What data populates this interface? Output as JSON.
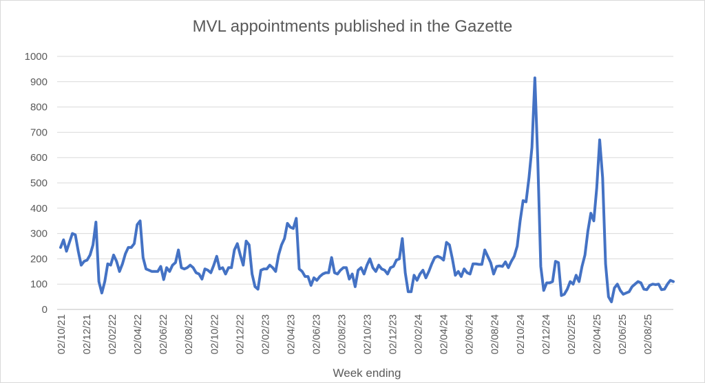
{
  "chart_data": {
    "type": "line",
    "title": "MVL appointments published in the Gazette",
    "xlabel": "Week ending",
    "ylabel": "",
    "ylim": [
      0,
      1000
    ],
    "yticks": [
      0,
      100,
      200,
      300,
      400,
      500,
      600,
      700,
      800,
      900,
      1000
    ],
    "x_tick_labels": [
      "02/10/21",
      "02/12/21",
      "02/02/22",
      "02/04/22",
      "02/06/22",
      "02/08/22",
      "02/10/22",
      "02/12/22",
      "02/02/23",
      "02/04/23",
      "02/06/23",
      "02/08/23",
      "02/10/23",
      "02/12/23",
      "02/02/24",
      "02/04/24",
      "02/06/24",
      "02/08/24",
      "02/10/24",
      "02/12/24",
      "02/02/25",
      "02/04/25",
      "02/06/25",
      "02/08/25"
    ],
    "grid": true,
    "legend": "none",
    "color": "#4472c4",
    "series": [
      {
        "values": [
          245,
          275,
          230,
          265,
          300,
          295,
          230,
          175,
          190,
          195,
          215,
          255,
          345,
          110,
          65,
          110,
          180,
          175,
          215,
          190,
          150,
          180,
          220,
          245,
          245,
          260,
          335,
          350,
          205,
          160,
          155,
          150,
          150,
          150,
          170,
          118,
          165,
          150,
          175,
          185,
          235,
          165,
          160,
          165,
          175,
          165,
          145,
          140,
          120,
          160,
          155,
          145,
          175,
          210,
          160,
          165,
          140,
          165,
          165,
          235,
          260,
          215,
          175,
          270,
          255,
          140,
          90,
          80,
          155,
          160,
          160,
          175,
          165,
          150,
          215,
          255,
          280,
          340,
          325,
          320,
          360,
          160,
          150,
          130,
          130,
          95,
          125,
          115,
          130,
          140,
          145,
          145,
          205,
          145,
          140,
          155,
          165,
          165,
          120,
          140,
          90,
          155,
          165,
          140,
          175,
          200,
          165,
          150,
          175,
          160,
          155,
          140,
          165,
          170,
          195,
          200,
          280,
          145,
          70,
          70,
          135,
          115,
          140,
          155,
          125,
          150,
          180,
          205,
          210,
          205,
          195,
          265,
          255,
          200,
          135,
          150,
          130,
          160,
          145,
          140,
          180,
          180,
          178,
          178,
          235,
          210,
          185,
          140,
          170,
          172,
          170,
          188,
          165,
          190,
          210,
          250,
          350,
          430,
          425,
          520,
          640,
          915,
          585,
          170,
          75,
          105,
          105,
          110,
          190,
          185,
          55,
          60,
          80,
          110,
          100,
          135,
          110,
          170,
          215,
          310,
          380,
          350,
          480,
          670,
          520,
          180,
          50,
          30,
          85,
          100,
          75,
          60,
          65,
          70,
          90,
          100,
          110,
          105,
          80,
          78,
          95,
          100,
          98,
          100,
          78,
          80,
          100,
          115,
          110
        ]
      }
    ]
  }
}
